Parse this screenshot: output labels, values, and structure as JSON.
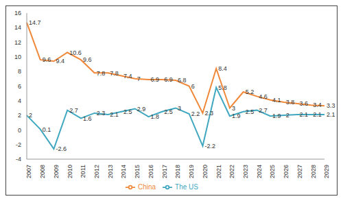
{
  "chart_data": {
    "type": "line",
    "categories": [
      "2007",
      "2008",
      "2009",
      "2010",
      "2011",
      "2012",
      "2013",
      "2014",
      "2015",
      "2016",
      "2017",
      "2018",
      "2019",
      "2020",
      "2021",
      "2022",
      "2023",
      "2024",
      "2025",
      "2026",
      "2027",
      "2028",
      "2029"
    ],
    "series": [
      {
        "name": "China",
        "color": "#f0883a",
        "values": [
          14.7,
          9.6,
          9.4,
          10.6,
          9.6,
          7.8,
          7.8,
          7.4,
          7,
          6.9,
          6.9,
          6.8,
          6,
          2.3,
          8.4,
          3,
          5.2,
          4.6,
          4.1,
          3.8,
          3.6,
          3.4,
          3.3
        ]
      },
      {
        "name": "The US",
        "color": "#3fa7bf",
        "values": [
          2,
          0.1,
          -2.6,
          2.7,
          1.6,
          2.3,
          2.1,
          2.5,
          2.9,
          1.8,
          2.5,
          3,
          2.2,
          -2.2,
          5.8,
          1.9,
          2.5,
          2.7,
          1.9,
          2,
          2.1,
          2.1,
          2.1
        ]
      }
    ],
    "ylim": [
      -4,
      16
    ],
    "yticks": [
      -4,
      -2,
      0,
      2,
      4,
      6,
      8,
      10,
      12,
      14,
      16
    ],
    "grid": false,
    "legend": "bottom",
    "data_labels": true,
    "marker": "none"
  }
}
